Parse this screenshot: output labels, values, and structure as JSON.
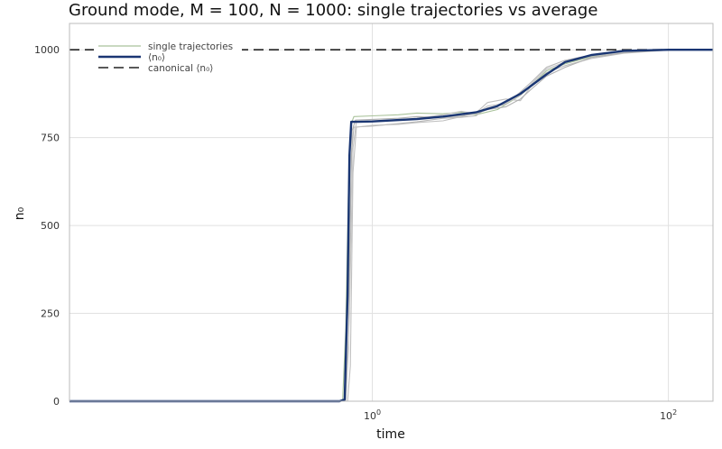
{
  "chart_data": {
    "type": "line",
    "title": "Ground mode, M = 100, N = 1000: single trajectories vs average",
    "xlabel": "time",
    "ylabel": "n₀",
    "x_scale": "log",
    "xlim": [
      0.009,
      200
    ],
    "ylim": [
      0,
      1075
    ],
    "x_ticks": [
      {
        "value": 1,
        "base": "10",
        "exp": "0"
      },
      {
        "value": 100,
        "base": "10",
        "exp": "2"
      }
    ],
    "y_ticks": [
      0,
      250,
      500,
      750,
      1000
    ],
    "y_tick_labels": [
      "0",
      "250",
      "500",
      "750",
      "1000"
    ],
    "grid": true,
    "legend_position": "top-left",
    "legend": [
      {
        "label": "single trajectories",
        "style": "thin-solid",
        "color": "#a9c29a"
      },
      {
        "label": "⟨n₀⟩",
        "style": "thick-solid",
        "color": "#1a3673"
      },
      {
        "label": "canonical ⟨n₀⟩",
        "style": "dashed",
        "color": "#222222"
      }
    ],
    "colors": {
      "average": "#1a3673",
      "trajectories": [
        "#a9c29a",
        "#b7b7b7",
        "#bfbfbf",
        "#b0b0b0",
        "#c4c4c4"
      ],
      "canonical": "#222222",
      "grid": "#e1e1e1",
      "frame": "#bbbbbb"
    },
    "series": [
      {
        "name": "⟨n₀⟩",
        "x": [
          0.009,
          0.5,
          0.6,
          0.65,
          0.68,
          0.7,
          0.72,
          0.8,
          1,
          2,
          3,
          5,
          7,
          10,
          15,
          20,
          30,
          50,
          100,
          200
        ],
        "y": [
          0,
          0,
          0,
          5,
          300,
          700,
          795,
          795,
          796,
          803,
          810,
          822,
          840,
          875,
          930,
          965,
          985,
          997,
          1000,
          1000
        ]
      },
      {
        "x": [
          0.009,
          0.55,
          0.63,
          0.66,
          0.69,
          0.72,
          0.75,
          1,
          1.5,
          2,
          3,
          4,
          5,
          7,
          10,
          12,
          15,
          20,
          30,
          50,
          100,
          200
        ],
        "y": [
          0,
          0,
          0,
          200,
          600,
          790,
          810,
          812,
          815,
          820,
          818,
          822,
          815,
          830,
          870,
          900,
          940,
          960,
          980,
          995,
          1000,
          1000
        ]
      },
      {
        "x": [
          0.009,
          0.6,
          0.66,
          0.69,
          0.72,
          0.75,
          1,
          1.5,
          2,
          3,
          4,
          5,
          6,
          8,
          10,
          12,
          15,
          20,
          30,
          50,
          100,
          200
        ],
        "y": [
          0,
          0,
          0,
          150,
          700,
          780,
          783,
          790,
          795,
          805,
          808,
          812,
          835,
          845,
          880,
          910,
          950,
          970,
          985,
          996,
          1000,
          1000
        ]
      },
      {
        "x": [
          0.009,
          0.62,
          0.68,
          0.71,
          0.74,
          0.78,
          1,
          1.5,
          2,
          3,
          4,
          5,
          6,
          8,
          10,
          12,
          15,
          20,
          30,
          50,
          100,
          200
        ],
        "y": [
          0,
          0,
          0,
          100,
          650,
          780,
          785,
          788,
          793,
          798,
          810,
          820,
          850,
          860,
          855,
          900,
          935,
          955,
          975,
          990,
          999,
          1000
        ]
      },
      {
        "x": [
          0.009,
          0.6,
          0.65,
          0.7,
          0.73,
          0.77,
          1,
          1.5,
          2,
          3,
          4,
          5,
          6,
          8,
          10,
          12,
          15,
          20,
          30,
          50,
          100,
          200
        ],
        "y": [
          0,
          0,
          0,
          400,
          770,
          800,
          802,
          805,
          810,
          808,
          812,
          818,
          830,
          838,
          860,
          890,
          925,
          950,
          978,
          992,
          1000,
          1000
        ]
      },
      {
        "x": [
          0.009,
          0.6,
          0.66,
          0.7,
          0.74,
          0.78,
          1,
          1.5,
          2,
          3,
          4,
          5,
          6,
          8,
          10,
          12,
          15,
          20,
          30,
          50,
          100,
          200
        ],
        "y": [
          0,
          0,
          0,
          250,
          720,
          795,
          798,
          800,
          805,
          815,
          825,
          818,
          840,
          848,
          870,
          905,
          945,
          965,
          982,
          994,
          1000,
          1000
        ]
      }
    ],
    "canonical": {
      "name": "canonical ⟨n₀⟩",
      "y": 1000
    }
  }
}
